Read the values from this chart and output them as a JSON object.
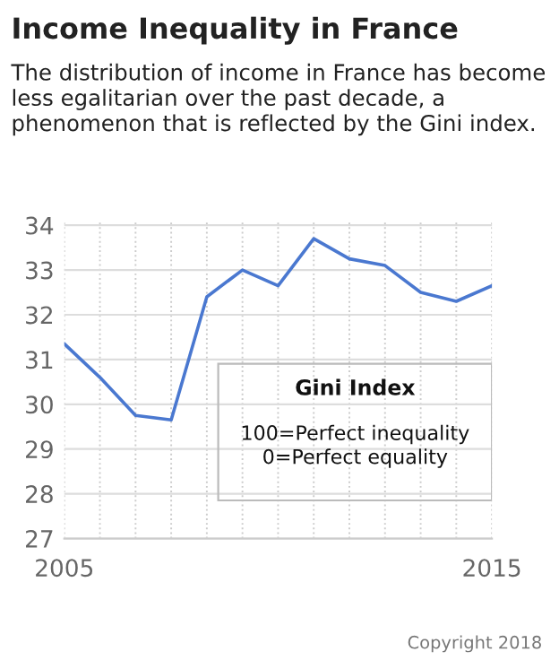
{
  "chart_data": {
    "type": "line",
    "title": "Income Inequality in France",
    "subtitle": "The distribution of income in France has become less egalitarian over the past decade, a phenomenon that is reflected by the Gini index.",
    "categories": [
      "2005",
      null,
      null,
      null,
      null,
      null,
      null,
      null,
      null,
      null,
      null,
      null,
      "2015"
    ],
    "series": [
      {
        "color": "#4a78d0",
        "values": [
          31.35,
          30.6,
          29.75,
          29.65,
          32.4,
          33.0,
          32.65,
          33.7,
          33.25,
          33.1,
          32.5,
          32.3,
          32.65
        ]
      }
    ],
    "ylim": [
      27,
      34.1
    ],
    "yticks": [
      27,
      28,
      29,
      30,
      31,
      32,
      33,
      34
    ],
    "grid": true,
    "marker": "none",
    "line_style": "solid",
    "annotations": [
      "Gini Index",
      "100=Perfect inequality\n0=Perfect equality",
      "Copyright 2018"
    ]
  }
}
